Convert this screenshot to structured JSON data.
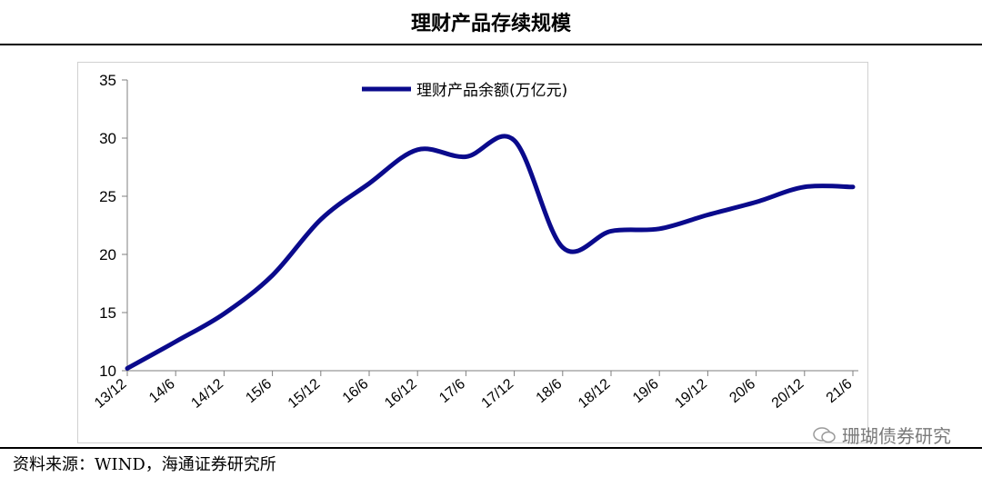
{
  "page": {
    "title": "理财产品存续规模",
    "source": "资料来源：WIND，海通证券研究所",
    "watermark": "珊瑚债券研究"
  },
  "colors": {
    "line": "#0a0a8c",
    "axis": "#7f7f7f"
  },
  "chart_data": {
    "type": "line",
    "x": [
      "13/12",
      "14/6",
      "14/12",
      "15/6",
      "15/12",
      "16/6",
      "16/12",
      "17/6",
      "17/12",
      "18/6",
      "18/12",
      "19/6",
      "19/12",
      "20/6",
      "20/12",
      "21/6"
    ],
    "series": [
      {
        "name": "理财产品余额(万亿元)",
        "values": [
          10.2,
          12.5,
          14.9,
          18.2,
          23.0,
          26.1,
          29.0,
          28.4,
          29.8,
          20.6,
          22.0,
          22.2,
          23.4,
          24.5,
          25.8,
          25.8
        ]
      }
    ],
    "yticks": [
      10,
      15,
      20,
      25,
      30,
      35
    ],
    "ylim": [
      10,
      35
    ],
    "grid": false,
    "legend": "top-center"
  }
}
